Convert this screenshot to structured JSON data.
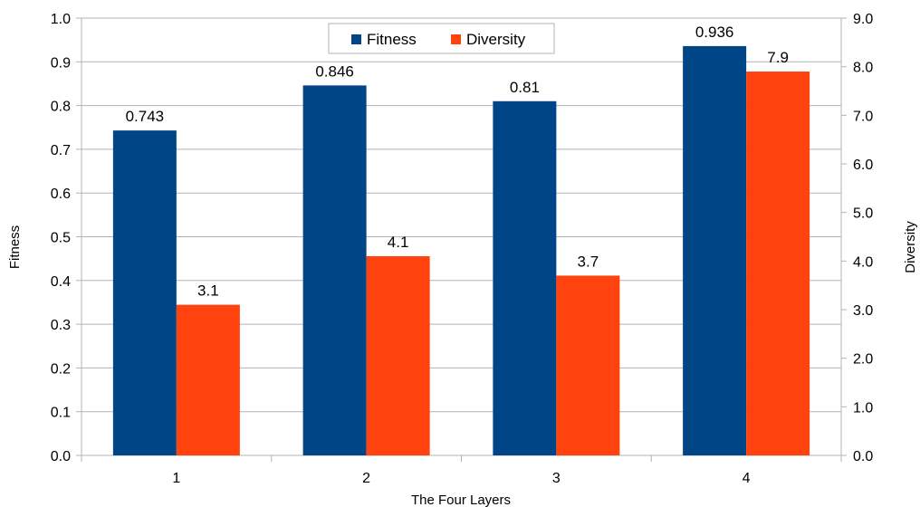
{
  "colors": {
    "fitness": "#004586",
    "diversity": "#ff420e",
    "grid": "#b3b3b3",
    "axis": "#b3b3b3"
  },
  "chart_data": {
    "type": "bar",
    "title": "",
    "xlabel": "The Four Layers",
    "ylabel_left": "Fitness",
    "ylabel_right": "Diversity",
    "categories": [
      "1",
      "2",
      "3",
      "4"
    ],
    "series": [
      {
        "name": "Fitness",
        "axis": "left",
        "values": [
          0.743,
          0.846,
          0.81,
          0.936
        ],
        "labels": [
          "0.743",
          "0.846",
          "0.81",
          "0.936"
        ]
      },
      {
        "name": "Diversity",
        "axis": "right",
        "values": [
          3.1,
          4.1,
          3.7,
          7.9
        ],
        "labels": [
          "3.1",
          "4.1",
          "3.7",
          "7.9"
        ]
      }
    ],
    "ylim_left": [
      0,
      1.0
    ],
    "ylim_right": [
      0,
      9.0
    ],
    "yticks_left": [
      "0.0",
      "0.1",
      "0.2",
      "0.3",
      "0.4",
      "0.5",
      "0.6",
      "0.7",
      "0.8",
      "0.9",
      "1.0"
    ],
    "yticks_right": [
      "0.0",
      "1.0",
      "2.0",
      "3.0",
      "4.0",
      "5.0",
      "6.0",
      "7.0",
      "8.0",
      "9.0"
    ],
    "grid": true,
    "legend": "top-center"
  }
}
